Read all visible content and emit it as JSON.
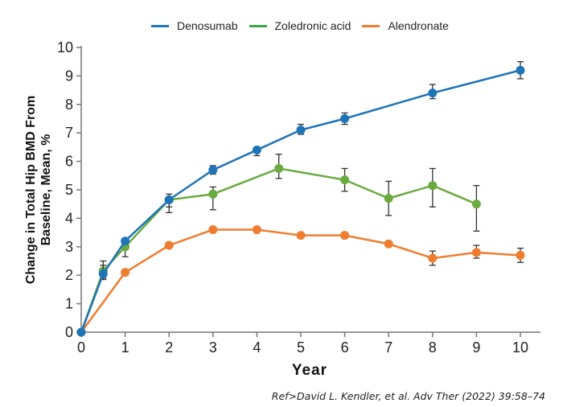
{
  "chart_data": {
    "type": "line",
    "title": "",
    "xlabel": "Year",
    "ylabel_lines": [
      "Change in Total Hip BMD From",
      "Baseline, Mean, %"
    ],
    "xlim": [
      0,
      10
    ],
    "ylim": [
      0,
      10
    ],
    "xticks": [
      0,
      1,
      2,
      3,
      4,
      5,
      6,
      7,
      8,
      9,
      10
    ],
    "yticks": [
      0,
      1,
      2,
      3,
      4,
      5,
      6,
      7,
      8,
      9,
      10
    ],
    "grid": false,
    "legend_position": "top-center",
    "series": [
      {
        "name": "Denosumab",
        "color": "#1f74b8",
        "points": [
          {
            "x": 0,
            "y": 0
          },
          {
            "x": 0.5,
            "y": 2.05,
            "err": [
              1.85,
              2.35
            ]
          },
          {
            "x": 1,
            "y": 3.2
          },
          {
            "x": 2,
            "y": 4.65,
            "err": [
              4.4,
              4.85
            ]
          },
          {
            "x": 3,
            "y": 5.7,
            "err": [
              5.55,
              5.85
            ]
          },
          {
            "x": 4,
            "y": 6.4,
            "err": [
              6.2,
              6.45
            ]
          },
          {
            "x": 5,
            "y": 7.1,
            "err": [
              6.95,
              7.3
            ]
          },
          {
            "x": 6,
            "y": 7.5,
            "err": [
              7.3,
              7.7
            ]
          },
          {
            "x": 8,
            "y": 8.4,
            "err": [
              8.2,
              8.7
            ]
          },
          {
            "x": 10,
            "y": 9.2,
            "err": [
              8.9,
              9.5
            ]
          }
        ]
      },
      {
        "name": "Zoledronic acid",
        "color": "#6aab3f",
        "points": [
          {
            "x": 0,
            "y": 0
          },
          {
            "x": 0.5,
            "y": 2.15,
            "err": [
              1.9,
              2.5
            ]
          },
          {
            "x": 1,
            "y": 3.0,
            "err": [
              2.65,
              3.15
            ]
          },
          {
            "x": 2,
            "y": 4.65,
            "err": [
              4.2,
              4.7
            ]
          },
          {
            "x": 3,
            "y": 4.85,
            "err": [
              4.3,
              5.1
            ]
          },
          {
            "x": 4.5,
            "y": 5.75,
            "err": [
              5.4,
              6.25
            ]
          },
          {
            "x": 6,
            "y": 5.35,
            "err": [
              4.95,
              5.75
            ]
          },
          {
            "x": 7,
            "y": 4.7,
            "err": [
              4.1,
              5.3
            ]
          },
          {
            "x": 8,
            "y": 5.15,
            "err": [
              4.4,
              5.75
            ]
          },
          {
            "x": 9,
            "y": 4.5,
            "err": [
              3.55,
              5.15
            ]
          }
        ]
      },
      {
        "name": "Alendronate",
        "color": "#ee7d2f",
        "points": [
          {
            "x": 0,
            "y": 0
          },
          {
            "x": 1,
            "y": 2.1
          },
          {
            "x": 2,
            "y": 3.05
          },
          {
            "x": 3,
            "y": 3.6
          },
          {
            "x": 4,
            "y": 3.6
          },
          {
            "x": 5,
            "y": 3.4
          },
          {
            "x": 6,
            "y": 3.4
          },
          {
            "x": 7,
            "y": 3.1
          },
          {
            "x": 8,
            "y": 2.6,
            "err": [
              2.35,
              2.85
            ]
          },
          {
            "x": 9,
            "y": 2.8,
            "err": [
              2.6,
              3.05
            ]
          },
          {
            "x": 10,
            "y": 2.7,
            "err": [
              2.45,
              2.95
            ]
          }
        ]
      }
    ]
  },
  "reference": "Ref>David L. Kendler, et al. Adv Ther (2022) 39:58–74"
}
